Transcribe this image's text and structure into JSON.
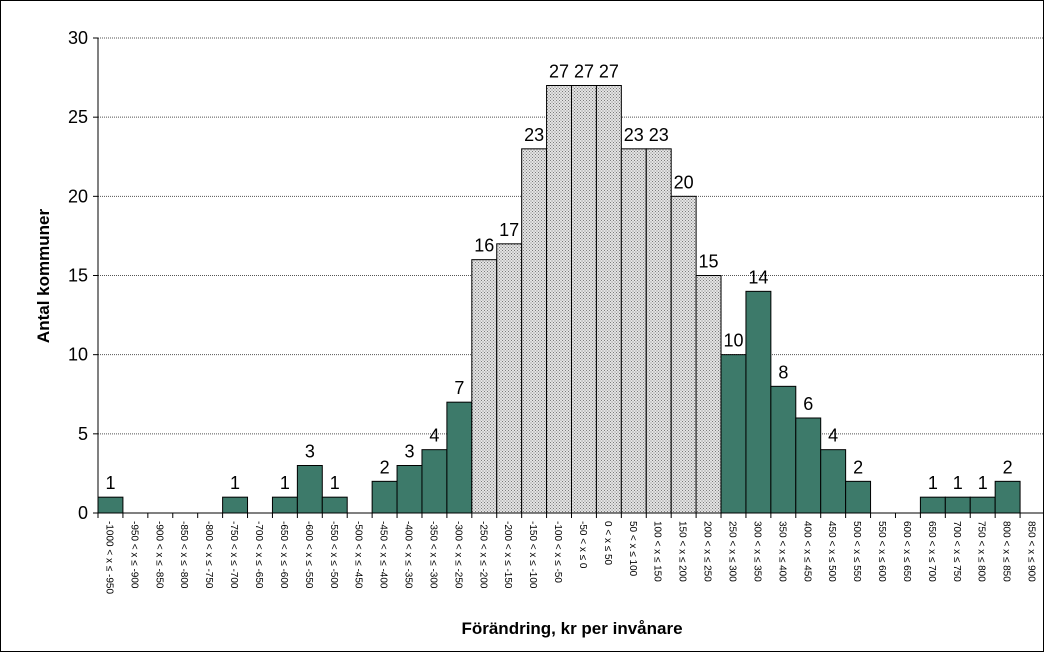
{
  "chart_data": {
    "type": "bar",
    "xlabel": "Förändring, kr per invånare",
    "ylabel": "Antal kommuner",
    "ylim": [
      0,
      30
    ],
    "yticks": [
      "0",
      "5",
      "10",
      "15",
      "20",
      "25",
      "30"
    ],
    "grid": "horizontal, dotted",
    "categories": [
      "-1000 < x ≤ -950",
      "-950 < x ≤ -900",
      "-900 < x ≤ -850",
      "-850 < x ≤ -800",
      "-800 < x ≤ -750",
      "-750 < x ≤ -700",
      "-700 < x ≤ -650",
      "-650 < x ≤ -600",
      "-600 < x ≤ -550",
      "-550 < x ≤ -500",
      "-500 < x ≤ -450",
      "-450 < x ≤ -400",
      "-400 < x ≤ -350",
      "-350 < x ≤ -300",
      "-300 < x ≤ -250",
      "-250 < x ≤ -200",
      "-200 < x ≤ -150",
      "-150 < x ≤ -100",
      "-100 < x ≤ -50",
      "-50 < x ≤ 0",
      "0 < x ≤ 50",
      "50 < x ≤ 100",
      "100 < x ≤ 150",
      "150 < x ≤ 200",
      "200 < x ≤ 250",
      "250 < x ≤ 300",
      "300 < x ≤ 350",
      "350 < x ≤ 400",
      "400 < x ≤ 450",
      "450 < x ≤ 500",
      "500 < x ≤ 550",
      "550 < x ≤ 600",
      "600 < x ≤ 650",
      "650 < x ≤ 700",
      "700 < x ≤ 750",
      "750 < x ≤ 800",
      "800 < x ≤ 850",
      "850 < x ≤ 900"
    ],
    "values": [
      1,
      0,
      0,
      0,
      0,
      1,
      0,
      1,
      3,
      1,
      0,
      2,
      3,
      4,
      7,
      16,
      17,
      23,
      27,
      27,
      27,
      23,
      23,
      20,
      15,
      10,
      14,
      8,
      6,
      4,
      2,
      0,
      0,
      1,
      1,
      1,
      2,
      0
    ],
    "fill_style": [
      "solid",
      "solid",
      "solid",
      "solid",
      "solid",
      "solid",
      "solid",
      "solid",
      "solid",
      "solid",
      "solid",
      "solid",
      "solid",
      "solid",
      "solid",
      "dotted",
      "dotted",
      "dotted",
      "dotted",
      "dotted",
      "dotted",
      "dotted",
      "dotted",
      "dotted",
      "dotted",
      "solid",
      "solid",
      "solid",
      "solid",
      "solid",
      "solid",
      "solid",
      "solid",
      "solid",
      "solid",
      "solid",
      "solid",
      "solid"
    ],
    "colors": {
      "solid": "#3d7a6a",
      "dotted_base": "#e4e4e4",
      "dotted_dot": "#7a7a7a",
      "bar_border": "#000000",
      "grid": "#555555"
    }
  }
}
